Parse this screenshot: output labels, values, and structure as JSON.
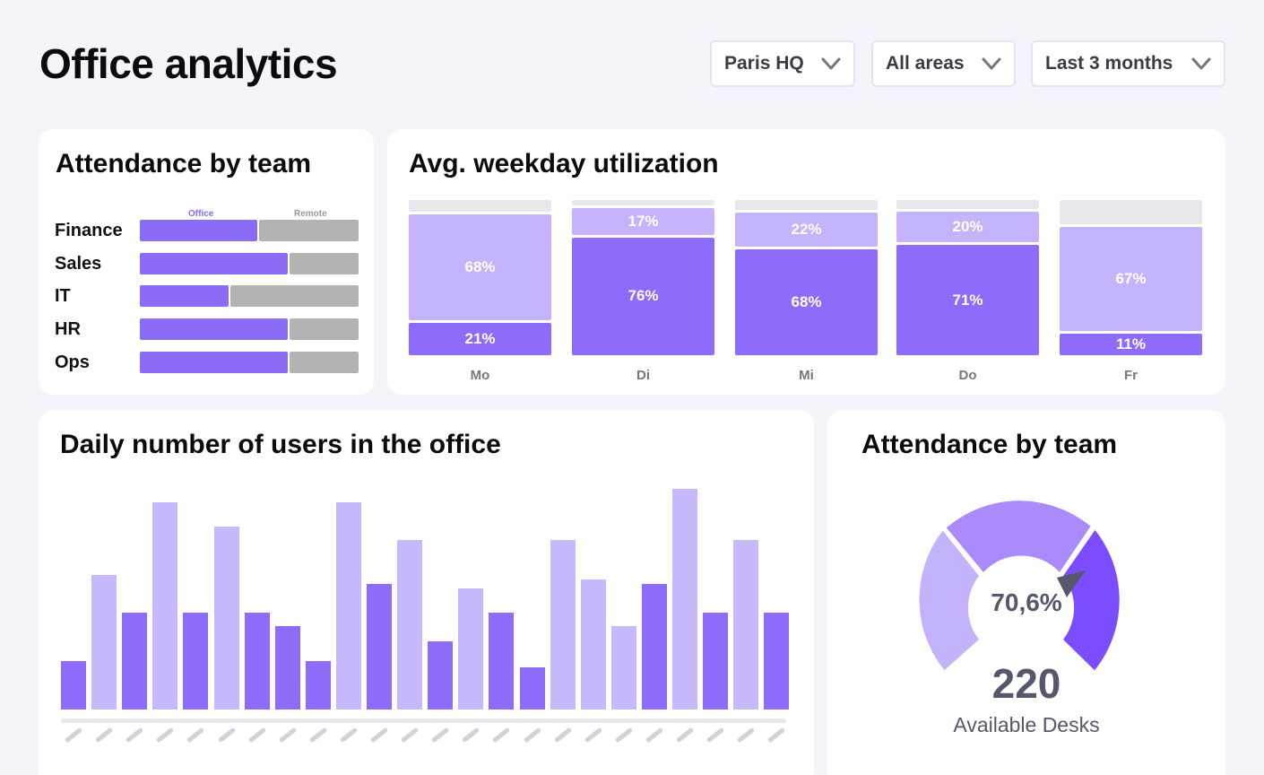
{
  "header": {
    "title": "Office analytics"
  },
  "filters": [
    {
      "label": "Paris HQ"
    },
    {
      "label": "All areas"
    },
    {
      "label": "Last 3 months"
    }
  ],
  "attendance_card": {
    "title": "Attendance by team",
    "legend": {
      "office": "Office",
      "remote": "Remote"
    },
    "teams": [
      {
        "name": "Finance",
        "office_pct": 54
      },
      {
        "name": "Sales",
        "office_pct": 68
      },
      {
        "name": "IT",
        "office_pct": 41
      },
      {
        "name": "HR",
        "office_pct": 68
      },
      {
        "name": "Ops",
        "office_pct": 68
      }
    ]
  },
  "weekday_card": {
    "title": "Avg. weekday utilization",
    "days": [
      {
        "day": "Mo",
        "upper": "68%",
        "lower": "21%",
        "upper_val": 68,
        "lower_val": 21
      },
      {
        "day": "Di",
        "upper": "17%",
        "lower": "76%",
        "upper_val": 17,
        "lower_val": 76
      },
      {
        "day": "Mi",
        "upper": "22%",
        "lower": "68%",
        "upper_val": 22,
        "lower_val": 68
      },
      {
        "day": "Do",
        "upper": "20%",
        "lower": "71%",
        "upper_val": 20,
        "lower_val": 71
      },
      {
        "day": "Fr",
        "upper": "67%",
        "lower": "11%",
        "upper_val": 67,
        "lower_val": 11
      }
    ]
  },
  "daily_card": {
    "title": "Daily number of users in the office"
  },
  "gauge_card": {
    "title": "Attendance by team",
    "percent": "70,6%",
    "value": "220",
    "caption": "Available Desks",
    "colors": {
      "light": "#c4b3fb",
      "mid": "#a98bfb",
      "dark": "#7c4dff",
      "pointer": "#55576b"
    }
  },
  "chart_data": {
    "type": "bar",
    "title": "Daily number of users in the office",
    "xlabel": "",
    "ylabel": "",
    "ylim": [
      0,
      100
    ],
    "values": [
      22,
      61,
      44,
      94,
      44,
      83,
      44,
      38,
      22,
      94,
      57,
      77,
      31,
      55,
      44,
      19,
      77,
      59,
      38,
      57,
      100,
      44,
      77,
      44
    ],
    "shades": [
      "d",
      "l",
      "d",
      "l",
      "d",
      "l",
      "d",
      "d",
      "d",
      "l",
      "d",
      "l",
      "d",
      "l",
      "d",
      "d",
      "l",
      "l",
      "l",
      "d",
      "l",
      "d",
      "l",
      "d"
    ],
    "colors": {
      "d": "#8c6cf8",
      "l": "#c8b8fc"
    }
  }
}
